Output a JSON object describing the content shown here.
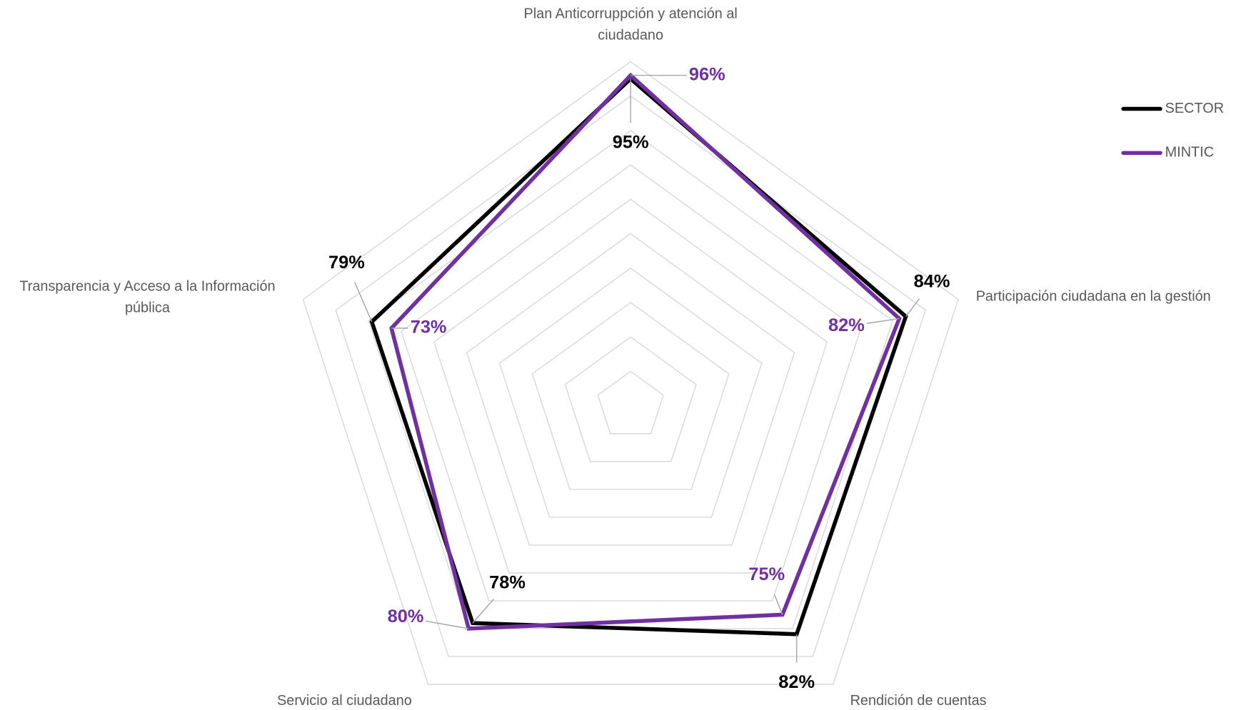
{
  "chart_data": {
    "type": "radar",
    "categories": [
      "Plan Anticorruppción y atención al ciudadano",
      "Participación ciudadana en la gestión",
      "Rendición de cuentas",
      "Servicio al ciudadano",
      "Transparencia y Acceso a la Información pública"
    ],
    "series": [
      {
        "name": "SECTOR",
        "color": "#000000",
        "values": [
          95,
          84,
          82,
          78,
          79
        ],
        "value_labels": [
          "95%",
          "84%",
          "82%",
          "78%",
          "79%"
        ]
      },
      {
        "name": "MINTIC",
        "color": "#7030a0",
        "values": [
          96,
          82,
          75,
          80,
          73
        ],
        "value_labels": [
          "96%",
          "82%",
          "75%",
          "80%",
          "73%"
        ]
      }
    ],
    "ylim": [
      0,
      100
    ],
    "yticks": [
      0,
      10,
      20,
      30,
      40,
      50,
      60,
      70,
      80,
      90,
      100
    ],
    "grid": true,
    "legend": "right"
  }
}
